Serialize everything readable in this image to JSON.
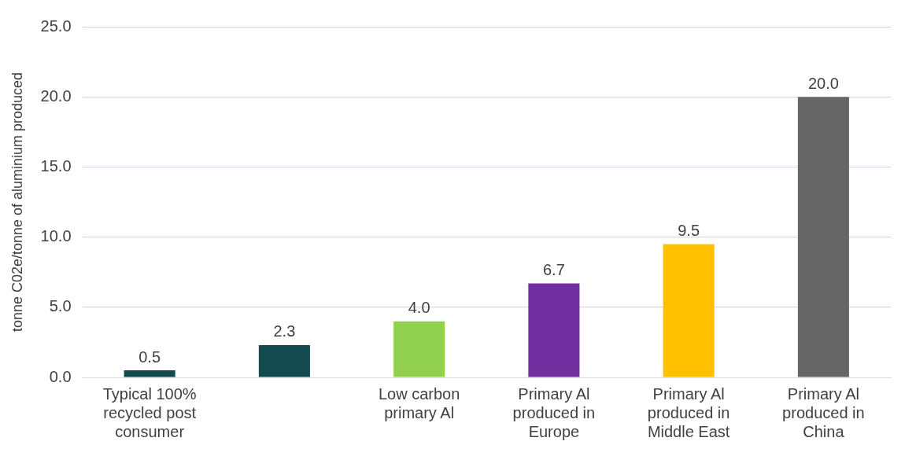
{
  "chart_data": {
    "type": "bar",
    "ylabel": "tonne C02e/tonne of aluminium produced",
    "categories": [
      "Typical 100% recycled post consumer",
      null,
      "Low carbon primary Al",
      "Primary Al produced in Europe",
      "Primary Al produced in Middle East",
      "Primary Al produced in China"
    ],
    "values": [
      0.5,
      2.3,
      4.0,
      6.7,
      9.5,
      20.0
    ],
    "colors": [
      "#134a4f",
      "#134a4f",
      "#92d050",
      "#7030a0",
      "#ffc000",
      "#666666"
    ],
    "ylim": [
      0,
      25
    ],
    "yticks": [
      {
        "value": 0,
        "label": "0.0"
      },
      {
        "value": 5,
        "label": "5.0"
      },
      {
        "value": 10,
        "label": "10.0"
      },
      {
        "value": 15,
        "label": "15.0"
      },
      {
        "value": 20,
        "label": "20.0"
      },
      {
        "value": 25,
        "label": "25.0"
      }
    ],
    "value_labels": [
      "0.5",
      "2.3",
      "4.0",
      "6.7",
      "9.5",
      "20.0"
    ],
    "grid": "y"
  }
}
